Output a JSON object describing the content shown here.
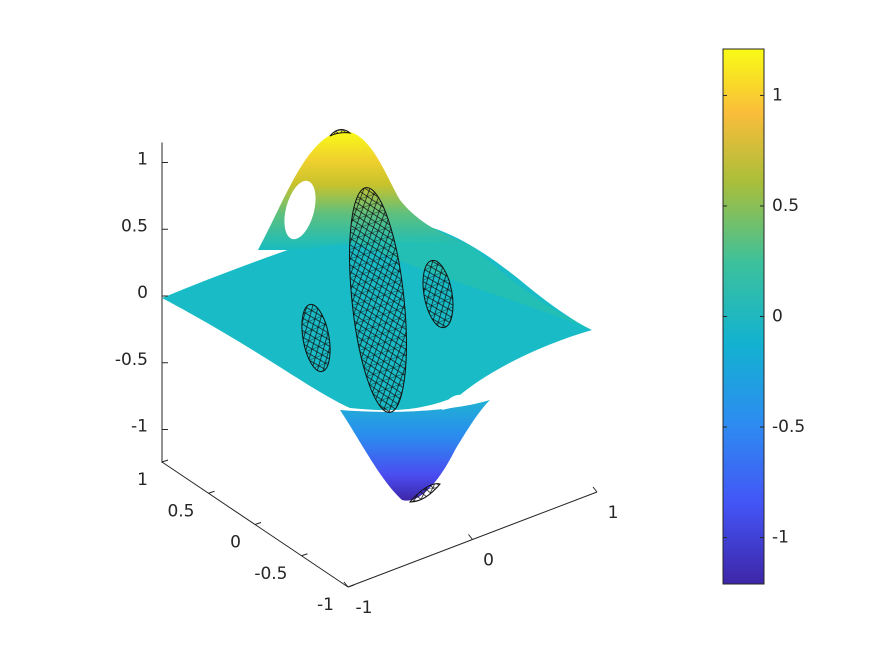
{
  "chart_data": {
    "type": "surface",
    "xlim": [
      -1,
      1
    ],
    "xticks": [
      -1,
      0,
      1
    ],
    "ylim": [
      -1,
      1
    ],
    "yticks": [
      -1,
      -0.5,
      0,
      0.5,
      1
    ],
    "zlim": [
      -1.25,
      1.15
    ],
    "zticks": [
      -1,
      -0.5,
      0,
      0.5,
      1
    ],
    "colorbar": {
      "clim": [
        -1.21,
        1.21
      ],
      "ticks": [
        -1,
        -0.5,
        0,
        0.5,
        1
      ],
      "colormap": "parula"
    }
  }
}
